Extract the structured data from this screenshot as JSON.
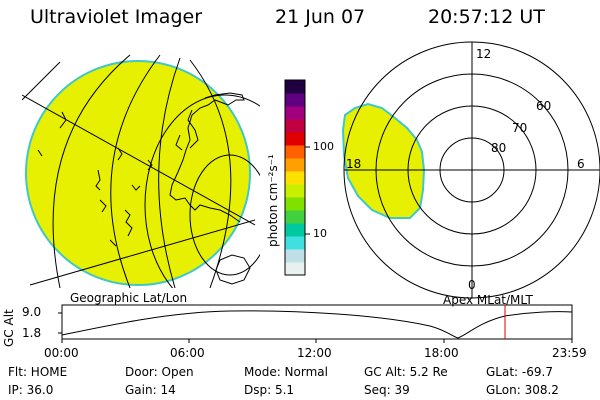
{
  "header": {
    "title": "Ultraviolet Imager",
    "date": "21 Jun 07",
    "time": "20:57:12 UT"
  },
  "geo_panel": {
    "label": "Geographic Lat/Lon"
  },
  "colorbar": {
    "unit_label": "photon cm⁻²s⁻¹",
    "tick_100": "100",
    "tick_10": "10",
    "colors": [
      "#e8f0f0",
      "#c0e0e8",
      "#40e0e0",
      "#00c8a0",
      "#40d040",
      "#80e000",
      "#c8f000",
      "#ffe000",
      "#ffa000",
      "#ff6000",
      "#e00000",
      "#c00040",
      "#a00080",
      "#600080",
      "#200040"
    ]
  },
  "polar_panel": {
    "label": "Apex MLat/MLT",
    "mlt_12": "12",
    "mlt_6": "6",
    "mlt_18": "18",
    "mlt_0": "0",
    "lat_60": "60",
    "lat_70": "70",
    "lat_80": "80"
  },
  "altitude_plot": {
    "ylabel": "GC Alt",
    "y_top": "9.0",
    "y_bottom": "1.8",
    "x_ticks": [
      "00:00",
      "06:00",
      "12:00",
      "18:00",
      "23:59"
    ]
  },
  "info": {
    "flt": "Flt: HOME",
    "ip": "IP: 36.0",
    "door": "Door: Open",
    "gain": "Gain: 14",
    "mode": "Mode: Normal",
    "dsp": "Dsp:     5.1",
    "gc_alt": "GC Alt: 5.2 Re",
    "seq": "Seq: 39",
    "glat": "GLat: -69.7",
    "glon": "GLon: 308.2"
  },
  "colors": {
    "emission": "#e6f000",
    "emission_edge": "#40c8c8",
    "current_time_marker": "#e00000"
  }
}
